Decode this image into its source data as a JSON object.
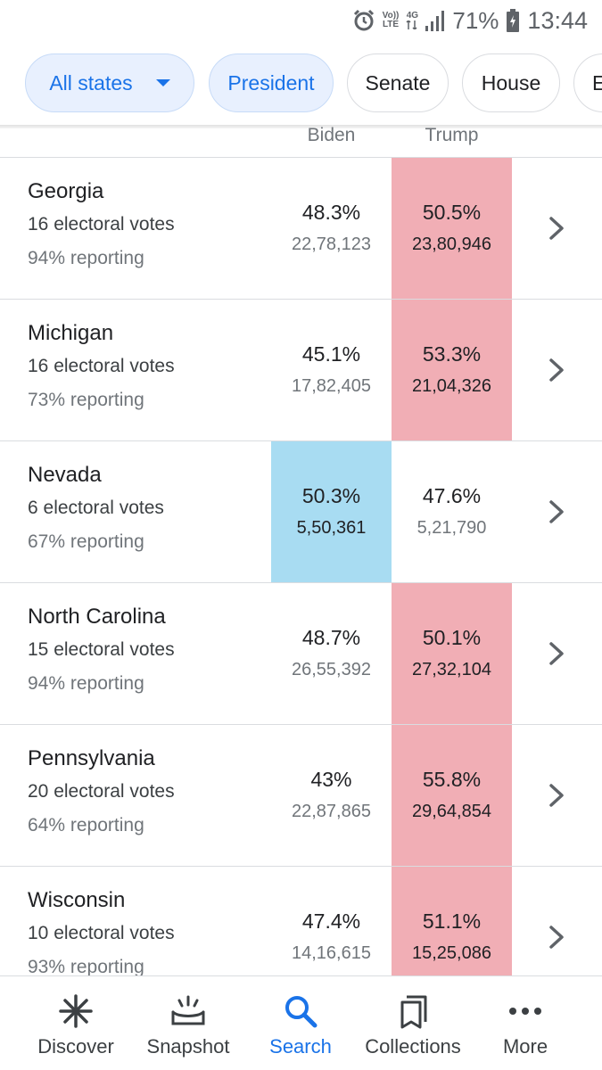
{
  "status_bar": {
    "volte_top": "Vo))",
    "volte_bottom": "LTE",
    "network": "4G",
    "battery": "71%",
    "time": "13:44"
  },
  "chips": [
    {
      "label": "All states",
      "active": true
    },
    {
      "label": "President",
      "active": true
    },
    {
      "label": "Senate",
      "active": false
    },
    {
      "label": "House",
      "active": false
    },
    {
      "label": "E",
      "active": false
    }
  ],
  "columns": {
    "biden": "Biden",
    "trump": "Trump"
  },
  "states": [
    {
      "name": "Georgia",
      "ev": "16 electoral votes",
      "reporting": "94% reporting",
      "biden_pct": "48.3%",
      "biden_votes": "22,78,123",
      "trump_pct": "50.5%",
      "trump_votes": "23,80,946",
      "leader": "trump"
    },
    {
      "name": "Michigan",
      "ev": "16 electoral votes",
      "reporting": "73% reporting",
      "biden_pct": "45.1%",
      "biden_votes": "17,82,405",
      "trump_pct": "53.3%",
      "trump_votes": "21,04,326",
      "leader": "trump"
    },
    {
      "name": "Nevada",
      "ev": "6 electoral votes",
      "reporting": "67% reporting",
      "biden_pct": "50.3%",
      "biden_votes": "5,50,361",
      "trump_pct": "47.6%",
      "trump_votes": "5,21,790",
      "leader": "biden"
    },
    {
      "name": "North Carolina",
      "ev": "15 electoral votes",
      "reporting": "94% reporting",
      "biden_pct": "48.7%",
      "biden_votes": "26,55,392",
      "trump_pct": "50.1%",
      "trump_votes": "27,32,104",
      "leader": "trump"
    },
    {
      "name": "Pennsylvania",
      "ev": "20 electoral votes",
      "reporting": "64% reporting",
      "biden_pct": "43%",
      "biden_votes": "22,87,865",
      "trump_pct": "55.8%",
      "trump_votes": "29,64,854",
      "leader": "trump"
    },
    {
      "name": "Wisconsin",
      "ev": "10 electoral votes",
      "reporting": "93% reporting",
      "biden_pct": "47.4%",
      "biden_votes": "14,16,615",
      "trump_pct": "51.1%",
      "trump_votes": "15,25,086",
      "leader": "trump"
    }
  ],
  "colors": {
    "rep_lead": "#f1aeb5",
    "dem_lead": "#a8dcf2",
    "accent": "#1a73e8"
  },
  "bottom_nav": [
    {
      "label": "Discover",
      "icon": "asterisk-icon",
      "active": false
    },
    {
      "label": "Snapshot",
      "icon": "snapshot-icon",
      "active": false
    },
    {
      "label": "Search",
      "icon": "search-icon",
      "active": true
    },
    {
      "label": "Collections",
      "icon": "collections-icon",
      "active": false
    },
    {
      "label": "More",
      "icon": "more-dots-icon",
      "active": false
    }
  ]
}
